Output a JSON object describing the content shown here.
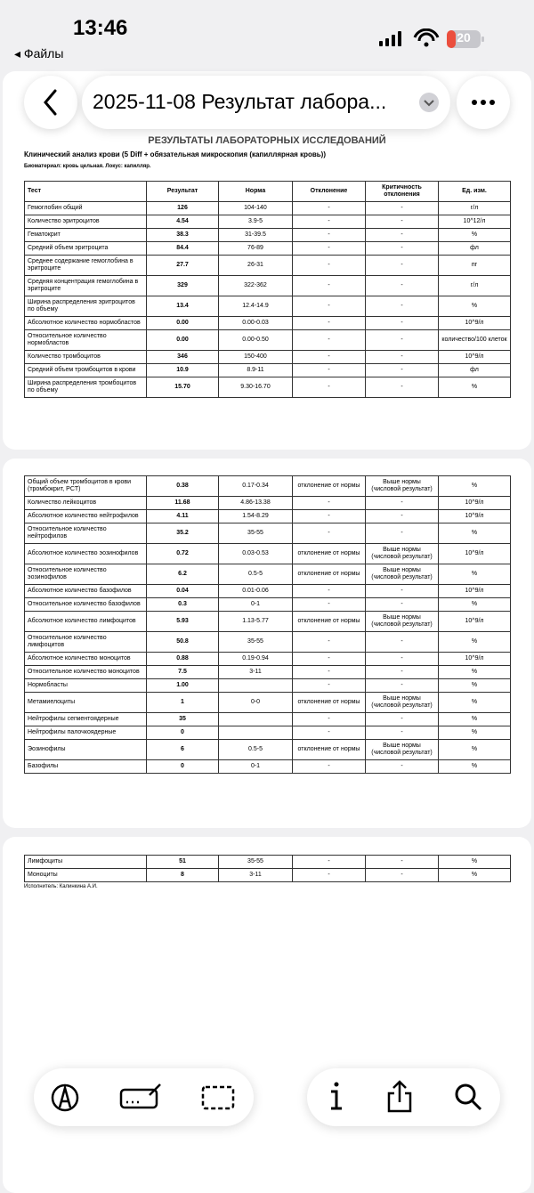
{
  "status": {
    "time": "13:46",
    "battery": "20",
    "back": "Файлы"
  },
  "nav": {
    "title": "2025-11-08 Результат лабора..."
  },
  "document": {
    "title": "РЕЗУЛЬТАТЫ ЛАБОРАТОРНЫХ ИССЛЕДОВАНИЙ",
    "subtitle": "Клинический анализ крови (5 Diff + обязательная микроскопия (капиллярная кровь))",
    "biomaterial": "Биоматериал: кровь цельная. Локус: капилляр.",
    "header": [
      "Тест",
      "Результат",
      "Норма",
      "Отклонение",
      "Критичность отклонения",
      "Ед. изм."
    ],
    "pages": [
      {
        "rows": [
          [
            "Гемоглобин общий",
            "126",
            "104-140",
            "-",
            "-",
            "г/л"
          ],
          [
            "Количество эритроцитов",
            "4.54",
            "3.9-5",
            "-",
            "-",
            "10^12/л"
          ],
          [
            "Гематокрит",
            "38.3",
            "31-39.5",
            "-",
            "-",
            "%"
          ],
          [
            "Средний объем эритроцита",
            "84.4",
            "76-89",
            "-",
            "-",
            "фл"
          ],
          [
            "Среднее содержание гемоглобина в эритроците",
            "27.7",
            "26-31",
            "-",
            "-",
            "пг"
          ],
          [
            "Средняя концентрация гемоглобина в эритроците",
            "329",
            "322-362",
            "-",
            "-",
            "г/л"
          ],
          [
            "Ширина распределения эритроцитов по объему",
            "13.4",
            "12.4-14.9",
            "-",
            "-",
            "%"
          ],
          [
            "Абсолютное количество нормобластов",
            "0.00",
            "0.00-0.03",
            "-",
            "-",
            "10^9/л"
          ],
          [
            "Относительное количество нормобластов",
            "0.00",
            "0.00-0.50",
            "-",
            "-",
            "количество/100 клеток"
          ],
          [
            "Количество тромбоцитов",
            "346",
            "150-400",
            "-",
            "-",
            "10^9/л"
          ],
          [
            "Средний объем тромбоцитов в крови",
            "10.9",
            "8.9-11",
            "-",
            "-",
            "фл"
          ],
          [
            "Ширина распределения тромбоцитов по объему",
            "15.70",
            "9.30-16.70",
            "-",
            "-",
            "%"
          ]
        ]
      },
      {
        "rows": [
          [
            "Общий объем тромбоцитов в крови (тромбокрит, PCT)",
            "0.38",
            "0.17-0.34",
            "отклонение от нормы",
            "Выше нормы (числовой результат)",
            "%"
          ],
          [
            "Количество лейкоцитов",
            "11.68",
            "4.86-13.38",
            "-",
            "-",
            "10^9/л"
          ],
          [
            "Абсолютное количество нейтрофилов",
            "4.11",
            "1.54-8.29",
            "-",
            "-",
            "10^9/л"
          ],
          [
            "Относительное количество нейтрофилов",
            "35.2",
            "35-55",
            "-",
            "-",
            "%"
          ],
          [
            "Абсолютное количество эозинофилов",
            "0.72",
            "0.03-0.53",
            "отклонение от нормы",
            "Выше нормы (числовой результат)",
            "10^9/л"
          ],
          [
            "Относительное количество эозинофилов",
            "6.2",
            "0.5-5",
            "отклонение от нормы",
            "Выше нормы (числовой результат)",
            "%"
          ],
          [
            "Абсолютное количество базофилов",
            "0.04",
            "0.01-0.06",
            "-",
            "-",
            "10^9/л"
          ],
          [
            "Относительное количество базофилов",
            "0.3",
            "0-1",
            "-",
            "-",
            "%"
          ],
          [
            "Абсолютное количество лимфоцитов",
            "5.93",
            "1.13-5.77",
            "отклонение от нормы",
            "Выше нормы (числовой результат)",
            "10^9/л"
          ],
          [
            "Относительное количество лимфоцитов",
            "50.8",
            "35-55",
            "-",
            "-",
            "%"
          ],
          [
            "Абсолютное количество моноцитов",
            "0.88",
            "0.19-0.94",
            "-",
            "-",
            "10^9/л"
          ],
          [
            "Относительное количество моноцитов",
            "7.5",
            "3-11",
            "-",
            "-",
            "%"
          ],
          [
            "Нормобласты",
            "1.00",
            null,
            "-",
            "-",
            "%"
          ],
          [
            "Метамиелоциты",
            "1",
            "0-0",
            "отклонение от нормы",
            "Выше нормы (числовой результат)",
            "%"
          ],
          [
            "Нейтрофилы сегментоядерные",
            "35",
            null,
            "-",
            "-",
            "%"
          ],
          [
            "Нейтрофилы палочкоядерные",
            "0",
            null,
            "-",
            "-",
            "%"
          ],
          [
            "Эозинофилы",
            "6",
            "0.5-5",
            "отклонение от нормы",
            "Выше нормы (числовой результат)",
            "%"
          ],
          [
            "Базофилы",
            "0",
            "0-1",
            "-",
            "-",
            "%"
          ]
        ]
      },
      {
        "rows": [
          [
            "Лимфоциты",
            "51",
            "35-55",
            "-",
            "-",
            "%"
          ],
          [
            "Моноциты",
            "8",
            "3-11",
            "-",
            "-",
            "%"
          ]
        ]
      }
    ],
    "executor": "Исполнитель: Калинкина А.И."
  }
}
